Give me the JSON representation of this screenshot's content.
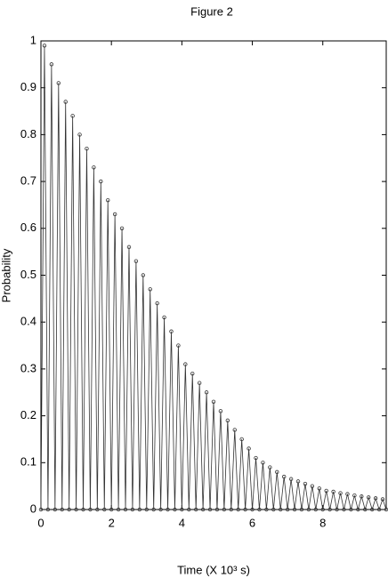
{
  "chart_data": {
    "type": "line",
    "title": "Figure 2",
    "xlabel": "Time (X 10³ s)",
    "ylabel": "Probability",
    "x": [
      0,
      0.1,
      0.2,
      0.3,
      0.4,
      0.5,
      0.6,
      0.7,
      0.8,
      0.9,
      1,
      1.1,
      1.2,
      1.3,
      1.4,
      1.5,
      1.6,
      1.7,
      1.8,
      1.9,
      2,
      2.1,
      2.2,
      2.3,
      2.4,
      2.5,
      2.6,
      2.7,
      2.8,
      2.9,
      3,
      3.1,
      3.2,
      3.3,
      3.4,
      3.5,
      3.6,
      3.7,
      3.8,
      3.9,
      4,
      4.1,
      4.2,
      4.3,
      4.4,
      4.5,
      4.6,
      4.7,
      4.8,
      4.9,
      5,
      5.1,
      5.2,
      5.3,
      5.4,
      5.5,
      5.6,
      5.7,
      5.8,
      5.9,
      6,
      6.1,
      6.2,
      6.3,
      6.4,
      6.5,
      6.6,
      6.7,
      6.8,
      6.9,
      7,
      7.1,
      7.2,
      7.3,
      7.4,
      7.5,
      7.6,
      7.7,
      7.8,
      7.9,
      8,
      8.1,
      8.2,
      8.3,
      8.4,
      8.5,
      8.6,
      8.7,
      8.8,
      8.9,
      9,
      9.1,
      9.2,
      9.3,
      9.4,
      9.5,
      9.6,
      9.7,
      9.8
    ],
    "series": [
      {
        "color": "#333333",
        "values": [
          0,
          0.99,
          0,
          0.95,
          0,
          0.91,
          0,
          0.87,
          0,
          0.84,
          0,
          0.8,
          0,
          0.77,
          0,
          0.73,
          0,
          0.7,
          0,
          0.66,
          0,
          0.63,
          0,
          0.6,
          0,
          0.56,
          0,
          0.53,
          0,
          0.5,
          0,
          0.47,
          0,
          0.44,
          0,
          0.41,
          0,
          0.38,
          0,
          0.35,
          0,
          0.31,
          0,
          0.29,
          0,
          0.27,
          0,
          0.25,
          0,
          0.23,
          0,
          0.21,
          0,
          0.19,
          0,
          0.17,
          0,
          0.15,
          0,
          0.13,
          0,
          0.11,
          0,
          0.1,
          0,
          0.09,
          0,
          0.08,
          0,
          0.07,
          0,
          0.065,
          0,
          0.06,
          0,
          0.055,
          0,
          0.05,
          0,
          0.045,
          0,
          0.04,
          0,
          0.038,
          0,
          0.035,
          0,
          0.033,
          0,
          0.03,
          0,
          0.028,
          0,
          0.026,
          0,
          0.024,
          0,
          0.022,
          0
        ]
      }
    ],
    "xlim": [
      0,
      9.8
    ],
    "xticks": [
      0,
      2,
      4,
      6,
      8
    ],
    "ylim": [
      0,
      1
    ],
    "yticks": [
      0,
      0.1,
      0.2,
      0.3,
      0.4,
      0.5,
      0.6,
      0.7,
      0.8,
      0.9,
      1
    ],
    "grid": false
  }
}
